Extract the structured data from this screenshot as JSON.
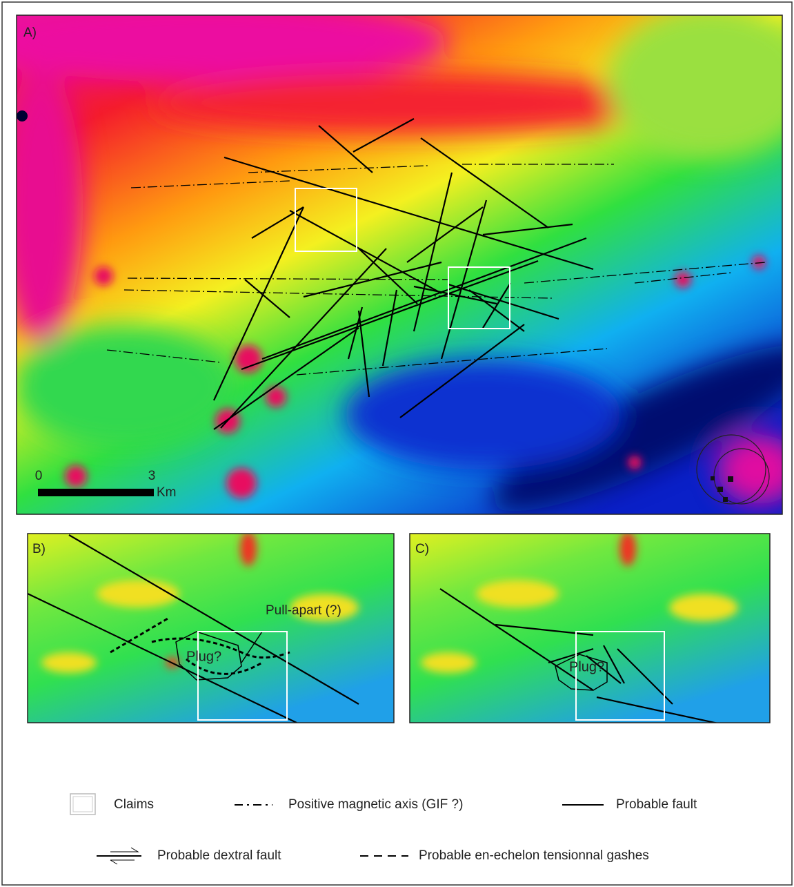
{
  "panel_a": {
    "label": "A)",
    "scale": {
      "start": 0,
      "end": 3,
      "unit": "Km"
    }
  },
  "panel_b": {
    "label": "B)",
    "annotation": "Pull-apart (?)",
    "plug": "Plug?"
  },
  "panel_c": {
    "label": "C)",
    "plug": "Plug?"
  },
  "legend": {
    "items": [
      "Claims",
      "Positive magnetic axis (GIF ?)",
      "Probable fault",
      "Probable dextral fault",
      "Probable en-echelon tensionnal gashes"
    ]
  }
}
